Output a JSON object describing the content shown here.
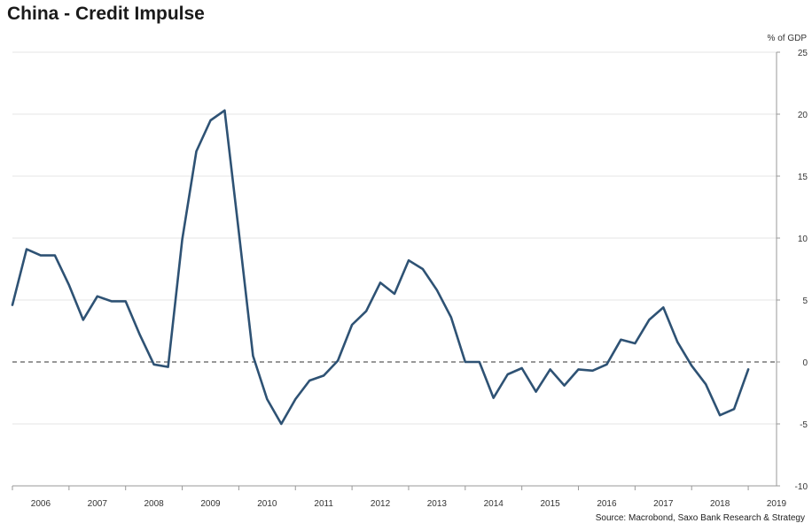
{
  "chart_data": {
    "type": "line",
    "title": "China - Credit Impulse",
    "unit_label": "% of GDP",
    "source": "Source: Macrobond, Saxo Bank Research & Strategy",
    "xlabel": "",
    "ylabel": "% of GDP",
    "ylim": [
      -10,
      25
    ],
    "xlim": [
      2005.75,
      2019.25
    ],
    "y_ticks": [
      -10,
      -5,
      0,
      5,
      10,
      15,
      20,
      25
    ],
    "x_tick_labels": [
      "2006",
      "2007",
      "2008",
      "2009",
      "2010",
      "2011",
      "2012",
      "2013",
      "2014",
      "2015",
      "2016",
      "2017",
      "2018",
      "2019"
    ],
    "grid": true,
    "zero_line": "dashed",
    "colors": {
      "series": "#2e5274",
      "grid": "#e4e4e4",
      "zero": "#777777",
      "axis": "#999999"
    },
    "series": [
      {
        "name": "Credit Impulse",
        "x": [
          2005.75,
          2006.0,
          2006.25,
          2006.5,
          2006.75,
          2007.0,
          2007.25,
          2007.5,
          2007.75,
          2008.0,
          2008.25,
          2008.5,
          2008.75,
          2009.0,
          2009.25,
          2009.5,
          2009.75,
          2010.0,
          2010.25,
          2010.5,
          2010.75,
          2011.0,
          2011.25,
          2011.5,
          2011.75,
          2012.0,
          2012.25,
          2012.5,
          2012.75,
          2013.0,
          2013.25,
          2013.5,
          2013.75,
          2014.0,
          2014.25,
          2014.5,
          2014.75,
          2015.0,
          2015.25,
          2015.5,
          2015.75,
          2016.0,
          2016.25,
          2016.5,
          2016.75,
          2017.0,
          2017.25,
          2017.5,
          2017.75,
          2018.0,
          2018.25,
          2018.5,
          2018.75
        ],
        "values": [
          4.6,
          9.1,
          8.6,
          8.6,
          6.2,
          3.4,
          5.3,
          4.9,
          4.9,
          2.2,
          -0.2,
          -0.4,
          9.9,
          17.0,
          19.5,
          20.3,
          10.5,
          0.5,
          -3.0,
          -5.0,
          -3.0,
          -1.5,
          -1.1,
          0.1,
          3.0,
          4.1,
          6.4,
          5.5,
          8.2,
          7.5,
          5.8,
          3.6,
          0.0,
          0.0,
          -2.9,
          -1.0,
          -0.5,
          -2.4,
          -0.6,
          -1.9,
          -0.6,
          -0.7,
          -0.2,
          1.8,
          1.5,
          3.4,
          4.4,
          1.6,
          -0.3,
          -1.8,
          -4.3,
          -3.8,
          -0.6
        ]
      }
    ]
  }
}
